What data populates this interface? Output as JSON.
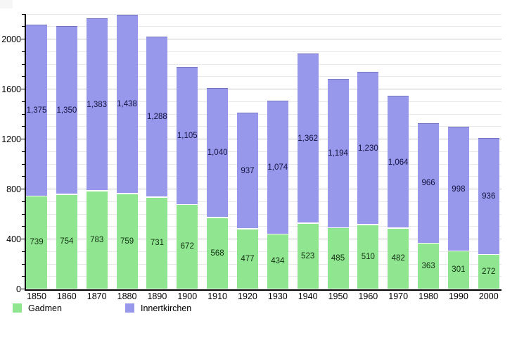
{
  "chart_data": {
    "type": "bar",
    "stacked": true,
    "title": "",
    "xlabel": "",
    "ylabel": "",
    "categories": [
      "1850",
      "1860",
      "1870",
      "1880",
      "1890",
      "1900",
      "1910",
      "1920",
      "1930",
      "1940",
      "1950",
      "1960",
      "1970",
      "1980",
      "1990",
      "2000"
    ],
    "series": [
      {
        "name": "Gadmen",
        "color": "#90e690",
        "label_color": "#143014",
        "values": [
          739,
          754,
          783,
          759,
          731,
          672,
          568,
          477,
          434,
          523,
          485,
          510,
          482,
          363,
          301,
          272
        ],
        "labels": [
          "739",
          "754",
          "783",
          "759",
          "731",
          "672",
          "568",
          "477",
          "434",
          "523",
          "485",
          "510",
          "482",
          "363",
          "301",
          "272"
        ]
      },
      {
        "name": "Innertkirchen",
        "color": "#9797ec",
        "label_color": "#14143f",
        "values": [
          1375,
          1350,
          1383,
          1438,
          1288,
          1105,
          1040,
          937,
          1074,
          1362,
          1194,
          1230,
          1064,
          966,
          998,
          936
        ],
        "labels": [
          "1,375",
          "1,350",
          "1,383",
          "1,438",
          "1,288",
          "1,105",
          "1,040",
          "937",
          "1,074",
          "1,362",
          "1,194",
          "1,230",
          "1,064",
          "966",
          "998",
          "936"
        ]
      }
    ],
    "ylim": [
      0,
      2200
    ],
    "ytick_labels": [
      "0",
      "400",
      "800",
      "1200",
      "1600",
      "2000"
    ],
    "ytick_values": [
      0,
      400,
      800,
      1200,
      1600,
      2000
    ],
    "grid": {
      "minor_step": 100,
      "major_step": 400,
      "minor_color": "#e8e8e8",
      "major_color": "#c6c6c6"
    },
    "axis_color": "#000000",
    "legend_position": "bottom-left"
  }
}
